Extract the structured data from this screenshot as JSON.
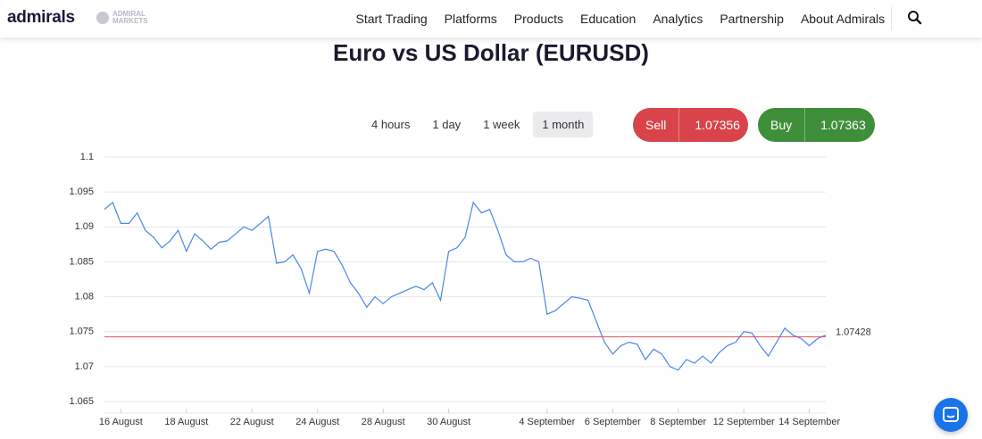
{
  "header": {
    "logo": "admirals",
    "sublogo": "ADMIRAL MARKETS",
    "nav": [
      "Start Trading",
      "Platforms",
      "Products",
      "Education",
      "Analytics",
      "Partnership",
      "About Admirals"
    ]
  },
  "title": "Euro vs US Dollar (EURUSD)",
  "timeframes": [
    "4 hours",
    "1 day",
    "1 week",
    "1 month"
  ],
  "sell": {
    "label": "Sell",
    "price": "1.07356"
  },
  "buy": {
    "label": "Buy",
    "price": "1.07363"
  },
  "chart_data": {
    "type": "line",
    "categories": [
      null,
      null,
      "16 August",
      null,
      null,
      null,
      null,
      null,
      null,
      null,
      "18 August",
      null,
      null,
      null,
      null,
      null,
      null,
      null,
      "22 August",
      null,
      null,
      null,
      null,
      null,
      null,
      null,
      "24 August",
      null,
      null,
      null,
      null,
      null,
      null,
      null,
      "28 August",
      null,
      null,
      null,
      null,
      null,
      null,
      null,
      "30 August",
      null,
      null,
      null,
      null,
      null,
      null,
      null,
      null,
      null,
      null,
      null,
      "4 September",
      null,
      null,
      null,
      null,
      null,
      null,
      null,
      "6 September",
      null,
      null,
      null,
      null,
      null,
      null,
      null,
      "8 September",
      null,
      null,
      null,
      null,
      null,
      null,
      null,
      "12 September",
      null,
      null,
      null,
      null,
      null,
      null,
      null,
      "14 September",
      null,
      null
    ],
    "series": [
      {
        "name": "EURUSD",
        "color": "#4a86e8",
        "values": [
          1.0925,
          1.0935,
          1.0905,
          1.0905,
          1.092,
          1.0895,
          1.0885,
          1.087,
          1.088,
          1.0895,
          1.0865,
          1.089,
          1.088,
          1.0868,
          1.0878,
          1.088,
          1.089,
          1.09,
          1.0895,
          1.0905,
          1.0915,
          1.0848,
          1.085,
          1.086,
          1.084,
          1.0805,
          1.0865,
          1.0868,
          1.0865,
          1.0845,
          1.082,
          1.0805,
          1.0785,
          1.08,
          1.079,
          1.08,
          1.0805,
          1.081,
          1.0815,
          1.081,
          1.082,
          1.0795,
          1.0865,
          1.087,
          1.0885,
          1.0935,
          1.092,
          1.0925,
          1.0895,
          1.086,
          1.085,
          1.085,
          1.0855,
          1.085,
          1.0775,
          1.078,
          1.079,
          1.08,
          1.0798,
          1.0795,
          1.0765,
          1.0735,
          1.0718,
          1.073,
          1.0735,
          1.0732,
          1.071,
          1.0725,
          1.0718,
          1.07,
          1.0695,
          1.071,
          1.0705,
          1.0715,
          1.0705,
          1.072,
          1.073,
          1.0735,
          1.075,
          1.0748,
          1.073,
          1.0715,
          1.0735,
          1.0755,
          1.0745,
          1.074,
          1.073,
          1.074,
          1.0745
        ]
      }
    ],
    "ylim": [
      1.065,
      1.1
    ],
    "yticks": [
      1.065,
      1.07,
      1.075,
      1.08,
      1.085,
      1.09,
      1.095,
      1.1
    ],
    "grid": true,
    "reference_line": {
      "value": 1.07428,
      "color": "#e0474c"
    }
  }
}
